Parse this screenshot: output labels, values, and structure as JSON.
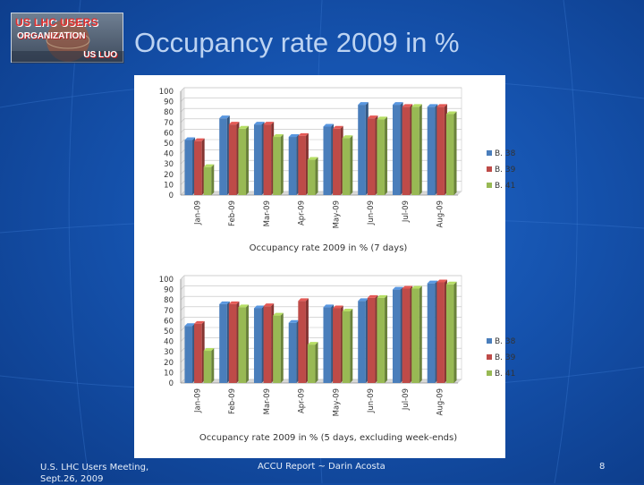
{
  "slide": {
    "title": "Occupancy rate 2009 in %",
    "logo": {
      "line1": "US LHC USERS",
      "line2": "ORGANIZATION",
      "line3": "US LUO"
    },
    "footer": {
      "left_line1": "U.S. LHC Users Meeting,",
      "left_line2": "Sept.26, 2009",
      "center": "ACCU Report ~ Darin Acosta",
      "page_number": "8"
    }
  },
  "colors": {
    "b38": "#4a7ebb",
    "b39": "#be4b48",
    "b41": "#98b954"
  },
  "chart_data": [
    {
      "type": "bar",
      "title": "Occupancy rate 2009 in % (7 days)",
      "categories": [
        "Jan-09",
        "Feb-09",
        "Mar-09",
        "Apr-09",
        "May-09",
        "Jun-09",
        "Jul-09",
        "Aug-09"
      ],
      "ylim": [
        0,
        100
      ],
      "yticks": [
        0,
        10,
        20,
        30,
        40,
        50,
        60,
        70,
        80,
        90,
        100
      ],
      "legend_position": "right",
      "series": [
        {
          "name": "B. 38",
          "values": [
            53,
            74,
            68,
            56,
            66,
            87,
            87,
            85
          ]
        },
        {
          "name": "B. 39",
          "values": [
            52,
            68,
            68,
            57,
            64,
            74,
            85,
            85
          ]
        },
        {
          "name": "B. 41",
          "values": [
            27,
            64,
            56,
            34,
            55,
            73,
            85,
            78
          ]
        }
      ]
    },
    {
      "type": "bar",
      "title": "Occupancy rate 2009 in % (5 days, excluding week-ends)",
      "categories": [
        "Jan-09",
        "Feb-09",
        "Mar-09",
        "Apr-09",
        "May-09",
        "Jun-09",
        "Jul-09",
        "Aug-09"
      ],
      "ylim": [
        0,
        100
      ],
      "yticks": [
        0,
        10,
        20,
        30,
        40,
        50,
        60,
        70,
        80,
        90,
        100
      ],
      "legend_position": "right",
      "series": [
        {
          "name": "B. 38",
          "values": [
            55,
            76,
            72,
            58,
            73,
            79,
            90,
            96
          ]
        },
        {
          "name": "B. 39",
          "values": [
            57,
            76,
            74,
            79,
            72,
            82,
            91,
            97
          ]
        },
        {
          "name": "B. 41",
          "values": [
            31,
            73,
            65,
            37,
            69,
            82,
            91,
            95
          ]
        }
      ]
    }
  ]
}
